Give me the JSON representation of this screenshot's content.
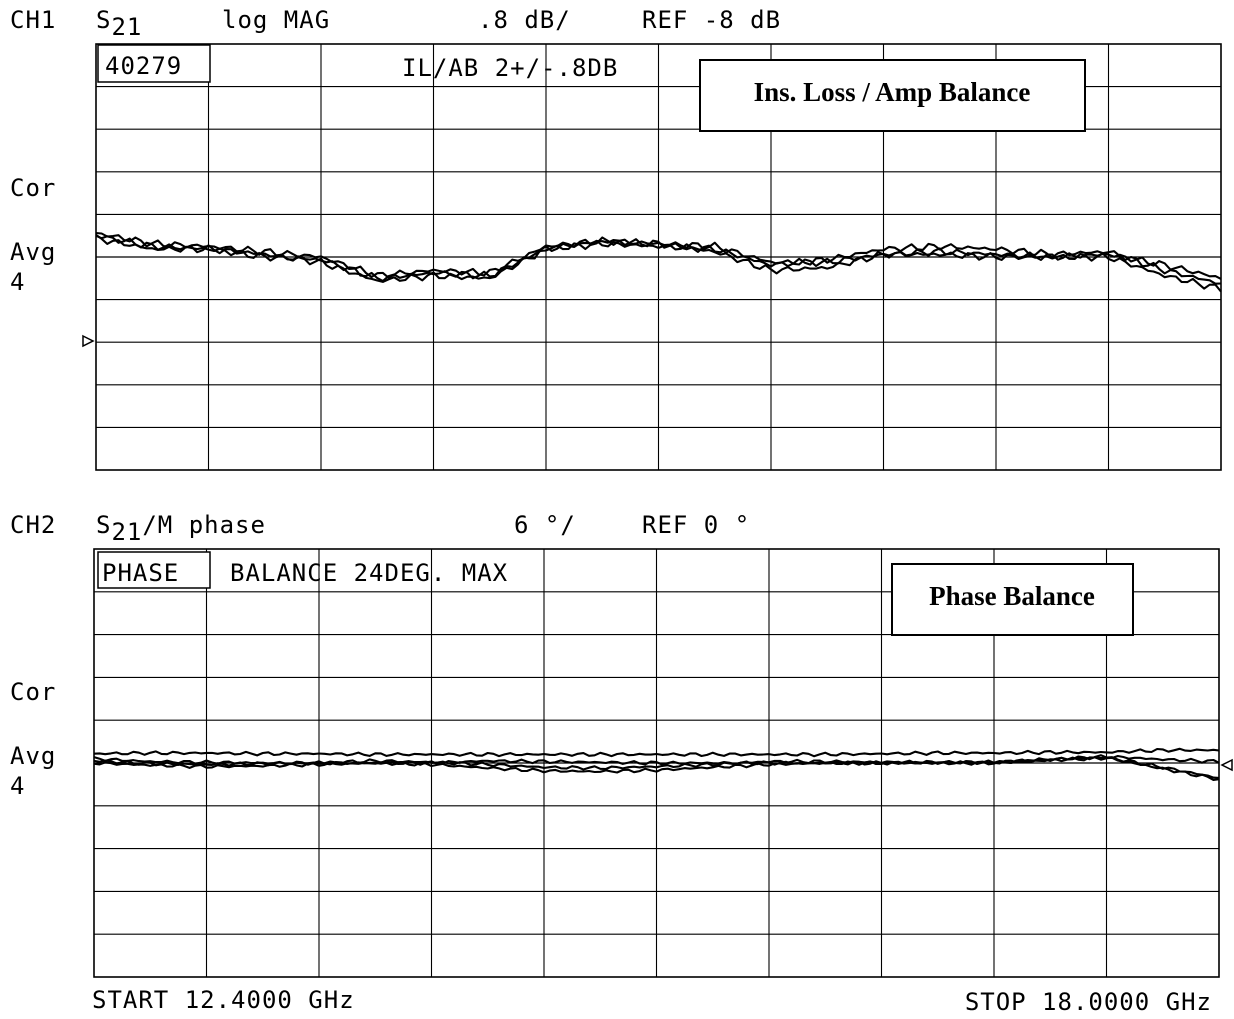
{
  "ch1": {
    "channel": "CH1",
    "param": "S",
    "param_sub": "21",
    "format": "log MAG",
    "scale": ".8 dB/",
    "ref": "REF -8 dB",
    "marker_box": "40279",
    "limit_text": "IL/AB 2+/-.8DB",
    "side_cor": "Cor",
    "side_avg": "Avg",
    "side_avg_n": "4",
    "callout": "Ins. Loss / Amp Balance"
  },
  "ch2": {
    "channel": "CH2",
    "param": "S",
    "param_sub": "21",
    "param_suffix": "/M phase",
    "scale": "6 °/",
    "ref": "REF 0 °",
    "title_box": "PHASE",
    "title_rest": "BALANCE 24DEG. MAX",
    "side_cor": "Cor",
    "side_avg": "Avg",
    "side_avg_n": "4",
    "callout": "Phase Balance"
  },
  "footer": {
    "start": "START 12.4000 GHz",
    "stop": "STOP 18.0000 GHz"
  },
  "chart_data": [
    {
      "type": "line",
      "title": "CH1 S21 log MAG .8 dB/ REF -8 dB",
      "x_unit": "GHz",
      "xlim": [
        12.4,
        18.0
      ],
      "ylim": [
        -12.0,
        -4.0
      ],
      "ref_value": -8.0,
      "grid": true,
      "x": [
        12.4,
        12.68,
        12.96,
        13.24,
        13.52,
        13.8,
        14.08,
        14.36,
        14.64,
        14.92,
        15.2,
        15.48,
        15.76,
        16.04,
        16.32,
        16.6,
        16.88,
        17.16,
        17.44,
        17.72,
        18.0
      ],
      "series": [
        {
          "values": [
            -7.55,
            -7.75,
            -7.8,
            -7.9,
            -8.0,
            -8.35,
            -8.25,
            -8.3,
            -7.8,
            -7.7,
            -7.75,
            -7.8,
            -8.1,
            -8.1,
            -7.95,
            -7.9,
            -7.95,
            -8.0,
            -7.95,
            -8.15,
            -8.4
          ]
        },
        {
          "values": [
            -7.65,
            -7.85,
            -7.85,
            -7.95,
            -8.1,
            -8.45,
            -8.35,
            -8.4,
            -7.85,
            -7.7,
            -7.75,
            -7.9,
            -8.25,
            -8.2,
            -7.95,
            -7.95,
            -8.0,
            -8.0,
            -8.0,
            -8.35,
            -8.6
          ]
        },
        {
          "values": [
            -7.6,
            -7.8,
            -7.85,
            -8.0,
            -8.05,
            -8.4,
            -8.3,
            -8.35,
            -7.85,
            -7.75,
            -7.8,
            -7.85,
            -8.15,
            -8.05,
            -7.85,
            -7.8,
            -7.85,
            -7.95,
            -7.9,
            -8.25,
            -8.5
          ]
        }
      ]
    },
    {
      "type": "line",
      "title": "CH2 S21/M phase 6 °/ REF 0 °",
      "x_unit": "GHz",
      "xlim": [
        12.4,
        18.0
      ],
      "ylim": [
        -30,
        30
      ],
      "ref_value": 0,
      "grid": true,
      "x": [
        12.4,
        12.68,
        12.96,
        13.24,
        13.52,
        13.8,
        14.08,
        14.36,
        14.64,
        14.92,
        15.2,
        15.48,
        15.76,
        16.04,
        16.32,
        16.6,
        16.88,
        17.16,
        17.44,
        17.72,
        18.0
      ],
      "series": [
        {
          "values": [
            1.3,
            1.4,
            1.4,
            1.3,
            1.3,
            1.2,
            1.2,
            1.2,
            1.2,
            1.2,
            1.2,
            1.2,
            1.2,
            1.2,
            1.3,
            1.4,
            1.4,
            1.5,
            1.5,
            1.8,
            1.8
          ]
        },
        {
          "values": [
            0.6,
            0.2,
            0.1,
            0.0,
            0.0,
            0.0,
            0.0,
            0.3,
            0.2,
            0.1,
            0.0,
            0.0,
            0.0,
            0.0,
            0.0,
            0.1,
            0.1,
            0.5,
            0.9,
            0.5,
            0.2
          ]
        },
        {
          "values": [
            0.3,
            -0.1,
            -0.2,
            -0.1,
            0.0,
            0.3,
            0.1,
            -0.2,
            -0.6,
            -0.7,
            -0.5,
            -0.2,
            0.2,
            0.2,
            0.1,
            0.1,
            0.1,
            0.5,
            0.8,
            -0.6,
            -2.1
          ]
        },
        {
          "values": [
            0.0,
            -0.3,
            -0.5,
            -0.4,
            -0.2,
            0.0,
            -0.2,
            -0.7,
            -1.1,
            -1.2,
            -1.0,
            -0.6,
            -0.2,
            0.0,
            0.0,
            0.0,
            0.0,
            0.4,
            0.7,
            -0.8,
            -2.3
          ]
        }
      ]
    }
  ]
}
